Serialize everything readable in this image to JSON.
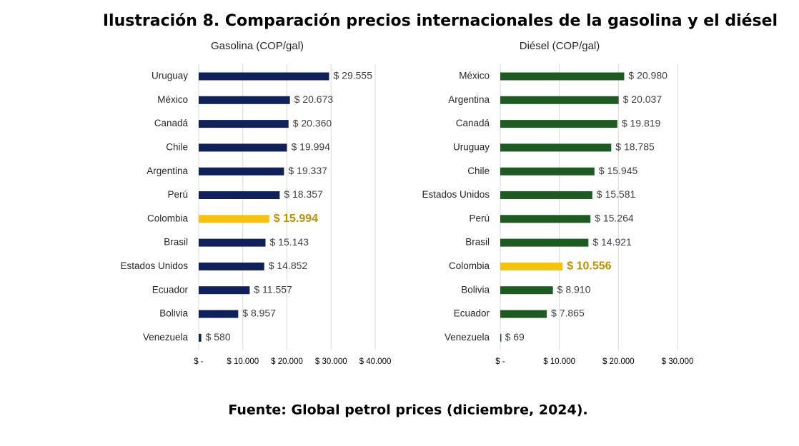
{
  "title": "Ilustración 8. Comparación precios internacionales de la gasolina y el diésel",
  "source": "Fuente: Global petrol prices (diciembre, 2024).",
  "chart_data": [
    {
      "type": "bar",
      "orientation": "horizontal",
      "subtitle": "Gasolina (COP/gal)",
      "categories": [
        "Uruguay",
        "México",
        "Canadá",
        "Chile",
        "Argentina",
        "Perú",
        "Colombia",
        "Brasil",
        "Estados Unidos",
        "Ecuador",
        "Bolivia",
        "Venezuela"
      ],
      "values": [
        29555,
        20673,
        20360,
        19994,
        19337,
        18357,
        15994,
        15143,
        14852,
        11557,
        8957,
        580
      ],
      "value_labels": [
        "$ 29.555",
        "$ 20.673",
        "$ 20.360",
        "$ 19.994",
        "$ 19.337",
        "$ 18.357",
        "$ 15.994",
        "$ 15.143",
        "$ 14.852",
        "$ 11.557",
        "$ 8.957",
        "$ 580"
      ],
      "colors": [
        "#0f2158",
        "#0f2158",
        "#0f2158",
        "#0f2158",
        "#0f2158",
        "#0f2158",
        "#f5c211",
        "#0f2158",
        "#0f2158",
        "#0f2158",
        "#0f2158",
        "#0f2158"
      ],
      "xlim": [
        0,
        40000
      ],
      "xticks": [
        {
          "value": 0,
          "label": "$ -"
        },
        {
          "value": 10000,
          "label": "$ 10.000"
        },
        {
          "value": 20000,
          "label": "$ 20.000"
        },
        {
          "value": 30000,
          "label": "$ 30.000"
        },
        {
          "value": 40000,
          "label": "$ 40.000"
        }
      ],
      "grid": true
    },
    {
      "type": "bar",
      "orientation": "horizontal",
      "subtitle": "Diésel (COP/gal)",
      "categories": [
        "México",
        "Argentina",
        "Canadá",
        "Uruguay",
        "Chile",
        "Estados Unidos",
        "Perú",
        "Brasil",
        "Colombia",
        "Bolivia",
        "Ecuador",
        "Venezuela"
      ],
      "values": [
        20980,
        20037,
        19819,
        18785,
        15945,
        15581,
        15264,
        14921,
        10556,
        8910,
        7865,
        69
      ],
      "value_labels": [
        "$ 20.980",
        "$ 20.037",
        "$ 19.819",
        "$ 18.785",
        "$ 15.945",
        "$ 15.581",
        "$ 15.264",
        "$ 14.921",
        "$ 10.556",
        "$ 8.910",
        "$ 7.865",
        "$ 69"
      ],
      "colors": [
        "#1e5b23",
        "#1e5b23",
        "#1e5b23",
        "#1e5b23",
        "#1e5b23",
        "#1e5b23",
        "#1e5b23",
        "#1e5b23",
        "#f5c211",
        "#1e5b23",
        "#1e5b23",
        "#1e5b23"
      ],
      "xlim": [
        0,
        30000
      ],
      "xticks": [
        {
          "value": 0,
          "label": "$ -"
        },
        {
          "value": 10000,
          "label": "$ 10.000"
        },
        {
          "value": 20000,
          "label": "$ 20.000"
        },
        {
          "value": 30000,
          "label": "$ 30.000"
        }
      ],
      "grid": true
    }
  ]
}
